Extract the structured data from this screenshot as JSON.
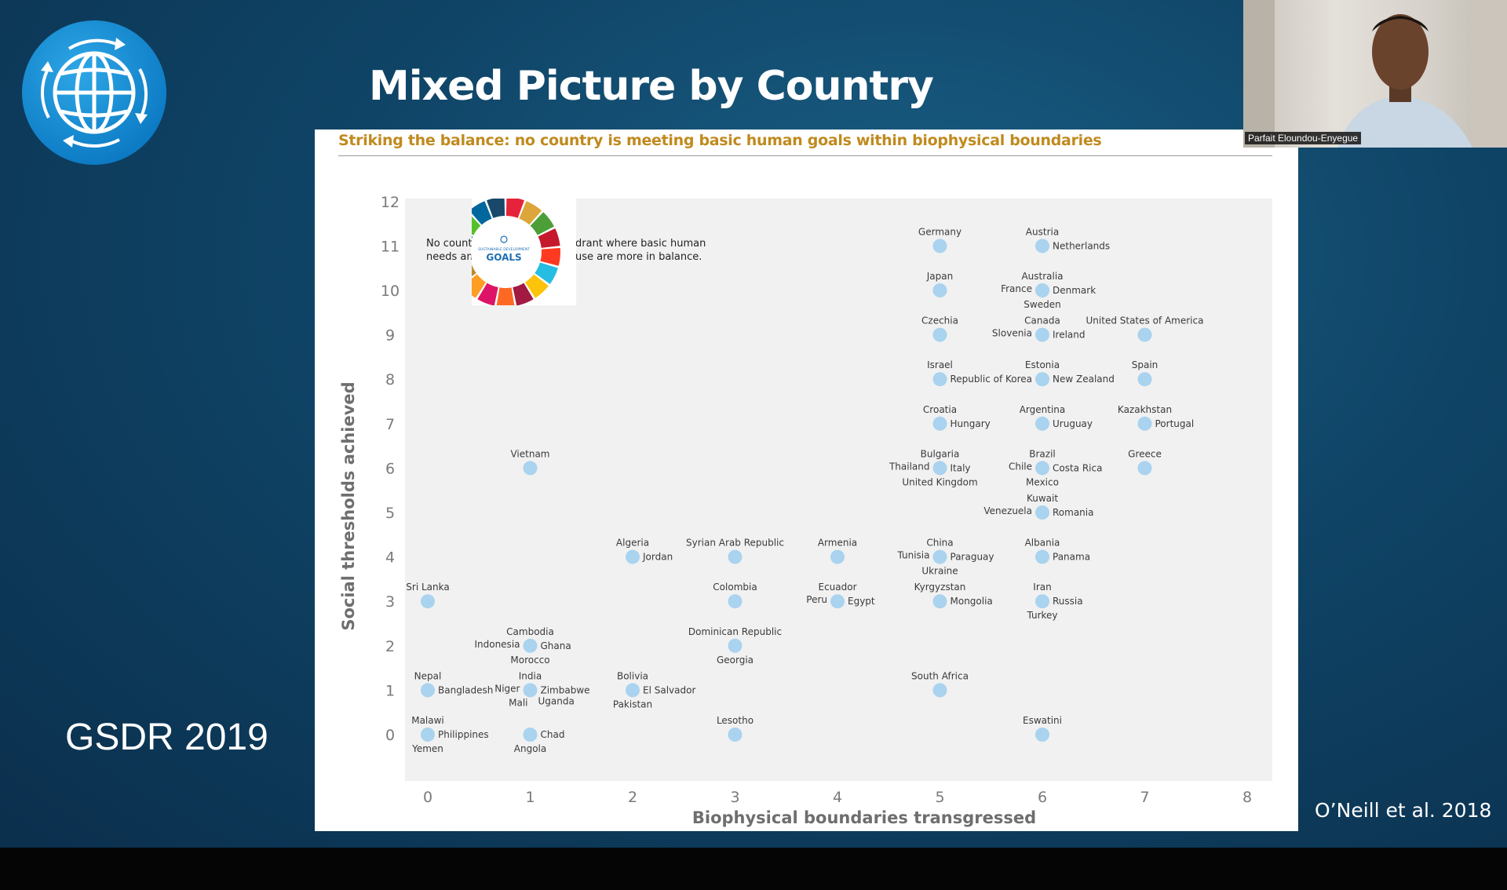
{
  "slide": {
    "title": "Mixed Picture by Country",
    "side_label": "GSDR 2019",
    "citation": "O’Neill et al. 2018",
    "heading": "Striking the balance: no country is meeting basic human goals within biophysical boundaries"
  },
  "webcam": {
    "participant_name": "Parfait Eloundou-Enyegue"
  },
  "note": {
    "line1_left": "No countr",
    "line1_right": "drant where basic human",
    "line2_left": "needs and",
    "line2_right": "use are more in balance.",
    "logo_text": "SUSTAINABLE DEVELOPMENT",
    "logo_goals": "GOALS"
  },
  "colors": {
    "point": "#a9d3ef",
    "heading": "#c08a1e",
    "plot_bg": "#f1f1f1",
    "slide_bg": "#0f4466"
  },
  "icons": {
    "logo": "globe-cycle-icon",
    "sdg": "sdg-wheel-icon"
  },
  "chart_data": {
    "type": "scatter",
    "title": "",
    "xlabel": "Biophysical boundaries transgressed",
    "ylabel": "Social thresholds achieved",
    "xlim": [
      0,
      8
    ],
    "ylim": [
      0,
      12
    ],
    "x_ticks": [
      "0",
      "1",
      "2",
      "3",
      "4",
      "5",
      "6",
      "7",
      "8"
    ],
    "y_ticks": [
      "0",
      "1",
      "2",
      "3",
      "4",
      "5",
      "6",
      "7",
      "8",
      "9",
      "10",
      "11",
      "12"
    ],
    "grid": false,
    "points": [
      {
        "x": 0,
        "y": 3,
        "labels": [
          {
            "text": "Sri Lanka",
            "pos": "top"
          }
        ]
      },
      {
        "x": 0,
        "y": 1,
        "labels": [
          {
            "text": "Nepal",
            "pos": "top"
          },
          {
            "text": "Bangladesh",
            "pos": "right"
          }
        ]
      },
      {
        "x": 0,
        "y": 0,
        "labels": [
          {
            "text": "Malawi",
            "pos": "top"
          },
          {
            "text": "Philippines",
            "pos": "right"
          },
          {
            "text": "Yemen",
            "pos": "bottom"
          }
        ]
      },
      {
        "x": 1,
        "y": 6,
        "labels": [
          {
            "text": "Vietnam",
            "pos": "top"
          }
        ]
      },
      {
        "x": 1,
        "y": 2,
        "labels": [
          {
            "text": "Cambodia",
            "pos": "top"
          },
          {
            "text": "Indonesia",
            "pos": "left"
          },
          {
            "text": "Ghana",
            "pos": "right"
          },
          {
            "text": "Morocco",
            "pos": "bottom"
          }
        ]
      },
      {
        "x": 1,
        "y": 1,
        "labels": [
          {
            "text": "India",
            "pos": "top"
          },
          {
            "text": "Niger",
            "pos": "left"
          },
          {
            "text": "Zimbabwe",
            "pos": "right"
          },
          {
            "text": "Mali",
            "pos": "bottom-left"
          },
          {
            "text": "Uganda",
            "pos": "bottom-right"
          }
        ]
      },
      {
        "x": 1,
        "y": 0,
        "labels": [
          {
            "text": "Chad",
            "pos": "right"
          },
          {
            "text": "Angola",
            "pos": "bottom"
          }
        ]
      },
      {
        "x": 2,
        "y": 4,
        "labels": [
          {
            "text": "Algeria",
            "pos": "top"
          },
          {
            "text": "Jordan",
            "pos": "right"
          }
        ]
      },
      {
        "x": 2,
        "y": 1,
        "labels": [
          {
            "text": "Bolivia",
            "pos": "top"
          },
          {
            "text": "El Salvador",
            "pos": "right"
          },
          {
            "text": "Pakistan",
            "pos": "bottom"
          }
        ]
      },
      {
        "x": 3,
        "y": 4,
        "labels": [
          {
            "text": "Syrian Arab Republic",
            "pos": "top"
          }
        ]
      },
      {
        "x": 3,
        "y": 3,
        "labels": [
          {
            "text": "Colombia",
            "pos": "top"
          }
        ]
      },
      {
        "x": 3,
        "y": 2,
        "labels": [
          {
            "text": "Dominican Republic",
            "pos": "top"
          },
          {
            "text": "Georgia",
            "pos": "bottom"
          }
        ]
      },
      {
        "x": 3,
        "y": 0,
        "labels": [
          {
            "text": "Lesotho",
            "pos": "top"
          }
        ]
      },
      {
        "x": 4,
        "y": 4,
        "labels": [
          {
            "text": "Armenia",
            "pos": "top"
          }
        ]
      },
      {
        "x": 4,
        "y": 3,
        "labels": [
          {
            "text": "Ecuador",
            "pos": "top"
          },
          {
            "text": "Peru",
            "pos": "left"
          },
          {
            "text": "Egypt",
            "pos": "right"
          }
        ]
      },
      {
        "x": 5,
        "y": 11,
        "labels": [
          {
            "text": "Germany",
            "pos": "top"
          }
        ]
      },
      {
        "x": 5,
        "y": 10,
        "labels": [
          {
            "text": "Japan",
            "pos": "top"
          }
        ]
      },
      {
        "x": 5,
        "y": 9,
        "labels": [
          {
            "text": "Czechia",
            "pos": "top"
          }
        ]
      },
      {
        "x": 5,
        "y": 8,
        "labels": [
          {
            "text": "Israel",
            "pos": "top"
          },
          {
            "text": "Republic of Korea",
            "pos": "right"
          }
        ]
      },
      {
        "x": 5,
        "y": 7,
        "labels": [
          {
            "text": "Croatia",
            "pos": "top"
          },
          {
            "text": "Hungary",
            "pos": "right"
          }
        ]
      },
      {
        "x": 5,
        "y": 6,
        "labels": [
          {
            "text": "Bulgaria",
            "pos": "top"
          },
          {
            "text": "Thailand",
            "pos": "left"
          },
          {
            "text": "Italy",
            "pos": "right"
          },
          {
            "text": "United Kingdom",
            "pos": "bottom"
          }
        ]
      },
      {
        "x": 5,
        "y": 4,
        "labels": [
          {
            "text": "China",
            "pos": "top"
          },
          {
            "text": "Tunisia",
            "pos": "left"
          },
          {
            "text": "Paraguay",
            "pos": "right"
          },
          {
            "text": "Ukraine",
            "pos": "bottom"
          }
        ]
      },
      {
        "x": 5,
        "y": 3,
        "labels": [
          {
            "text": "Kyrgyzstan",
            "pos": "top"
          },
          {
            "text": "Mongolia",
            "pos": "right"
          }
        ]
      },
      {
        "x": 5,
        "y": 1,
        "labels": [
          {
            "text": "South Africa",
            "pos": "top"
          }
        ]
      },
      {
        "x": 6,
        "y": 11,
        "labels": [
          {
            "text": "Austria",
            "pos": "top"
          },
          {
            "text": "Netherlands",
            "pos": "right"
          }
        ]
      },
      {
        "x": 6,
        "y": 10,
        "labels": [
          {
            "text": "Australia",
            "pos": "top"
          },
          {
            "text": "France",
            "pos": "left"
          },
          {
            "text": "Denmark",
            "pos": "right"
          },
          {
            "text": "Sweden",
            "pos": "bottom"
          }
        ]
      },
      {
        "x": 6,
        "y": 9,
        "labels": [
          {
            "text": "Canada",
            "pos": "top"
          },
          {
            "text": "Slovenia",
            "pos": "left"
          },
          {
            "text": "Ireland",
            "pos": "right"
          }
        ]
      },
      {
        "x": 6,
        "y": 8,
        "labels": [
          {
            "text": "Estonia",
            "pos": "top"
          },
          {
            "text": "New Zealand",
            "pos": "right"
          }
        ]
      },
      {
        "x": 6,
        "y": 7,
        "labels": [
          {
            "text": "Argentina",
            "pos": "top"
          },
          {
            "text": "Uruguay",
            "pos": "right"
          }
        ]
      },
      {
        "x": 6,
        "y": 6,
        "labels": [
          {
            "text": "Brazil",
            "pos": "top"
          },
          {
            "text": "Chile",
            "pos": "left"
          },
          {
            "text": "Costa Rica",
            "pos": "right"
          },
          {
            "text": "Mexico",
            "pos": "bottom"
          }
        ]
      },
      {
        "x": 6,
        "y": 5,
        "labels": [
          {
            "text": "Kuwait",
            "pos": "top"
          },
          {
            "text": "Venezuela",
            "pos": "left"
          },
          {
            "text": "Romania",
            "pos": "right"
          }
        ]
      },
      {
        "x": 6,
        "y": 4,
        "labels": [
          {
            "text": "Albania",
            "pos": "top"
          },
          {
            "text": "Panama",
            "pos": "right"
          }
        ]
      },
      {
        "x": 6,
        "y": 3,
        "labels": [
          {
            "text": "Iran",
            "pos": "top"
          },
          {
            "text": "Russia",
            "pos": "right"
          },
          {
            "text": "Turkey",
            "pos": "bottom"
          }
        ]
      },
      {
        "x": 6,
        "y": 0,
        "labels": [
          {
            "text": "Eswatini",
            "pos": "top"
          }
        ]
      },
      {
        "x": 7,
        "y": 9,
        "labels": [
          {
            "text": "United States of America",
            "pos": "top"
          }
        ]
      },
      {
        "x": 7,
        "y": 8,
        "labels": [
          {
            "text": "Spain",
            "pos": "top"
          }
        ]
      },
      {
        "x": 7,
        "y": 7,
        "labels": [
          {
            "text": "Kazakhstan",
            "pos": "top"
          },
          {
            "text": "Portugal",
            "pos": "right"
          }
        ]
      },
      {
        "x": 7,
        "y": 6,
        "labels": [
          {
            "text": "Greece",
            "pos": "top"
          }
        ]
      }
    ]
  }
}
